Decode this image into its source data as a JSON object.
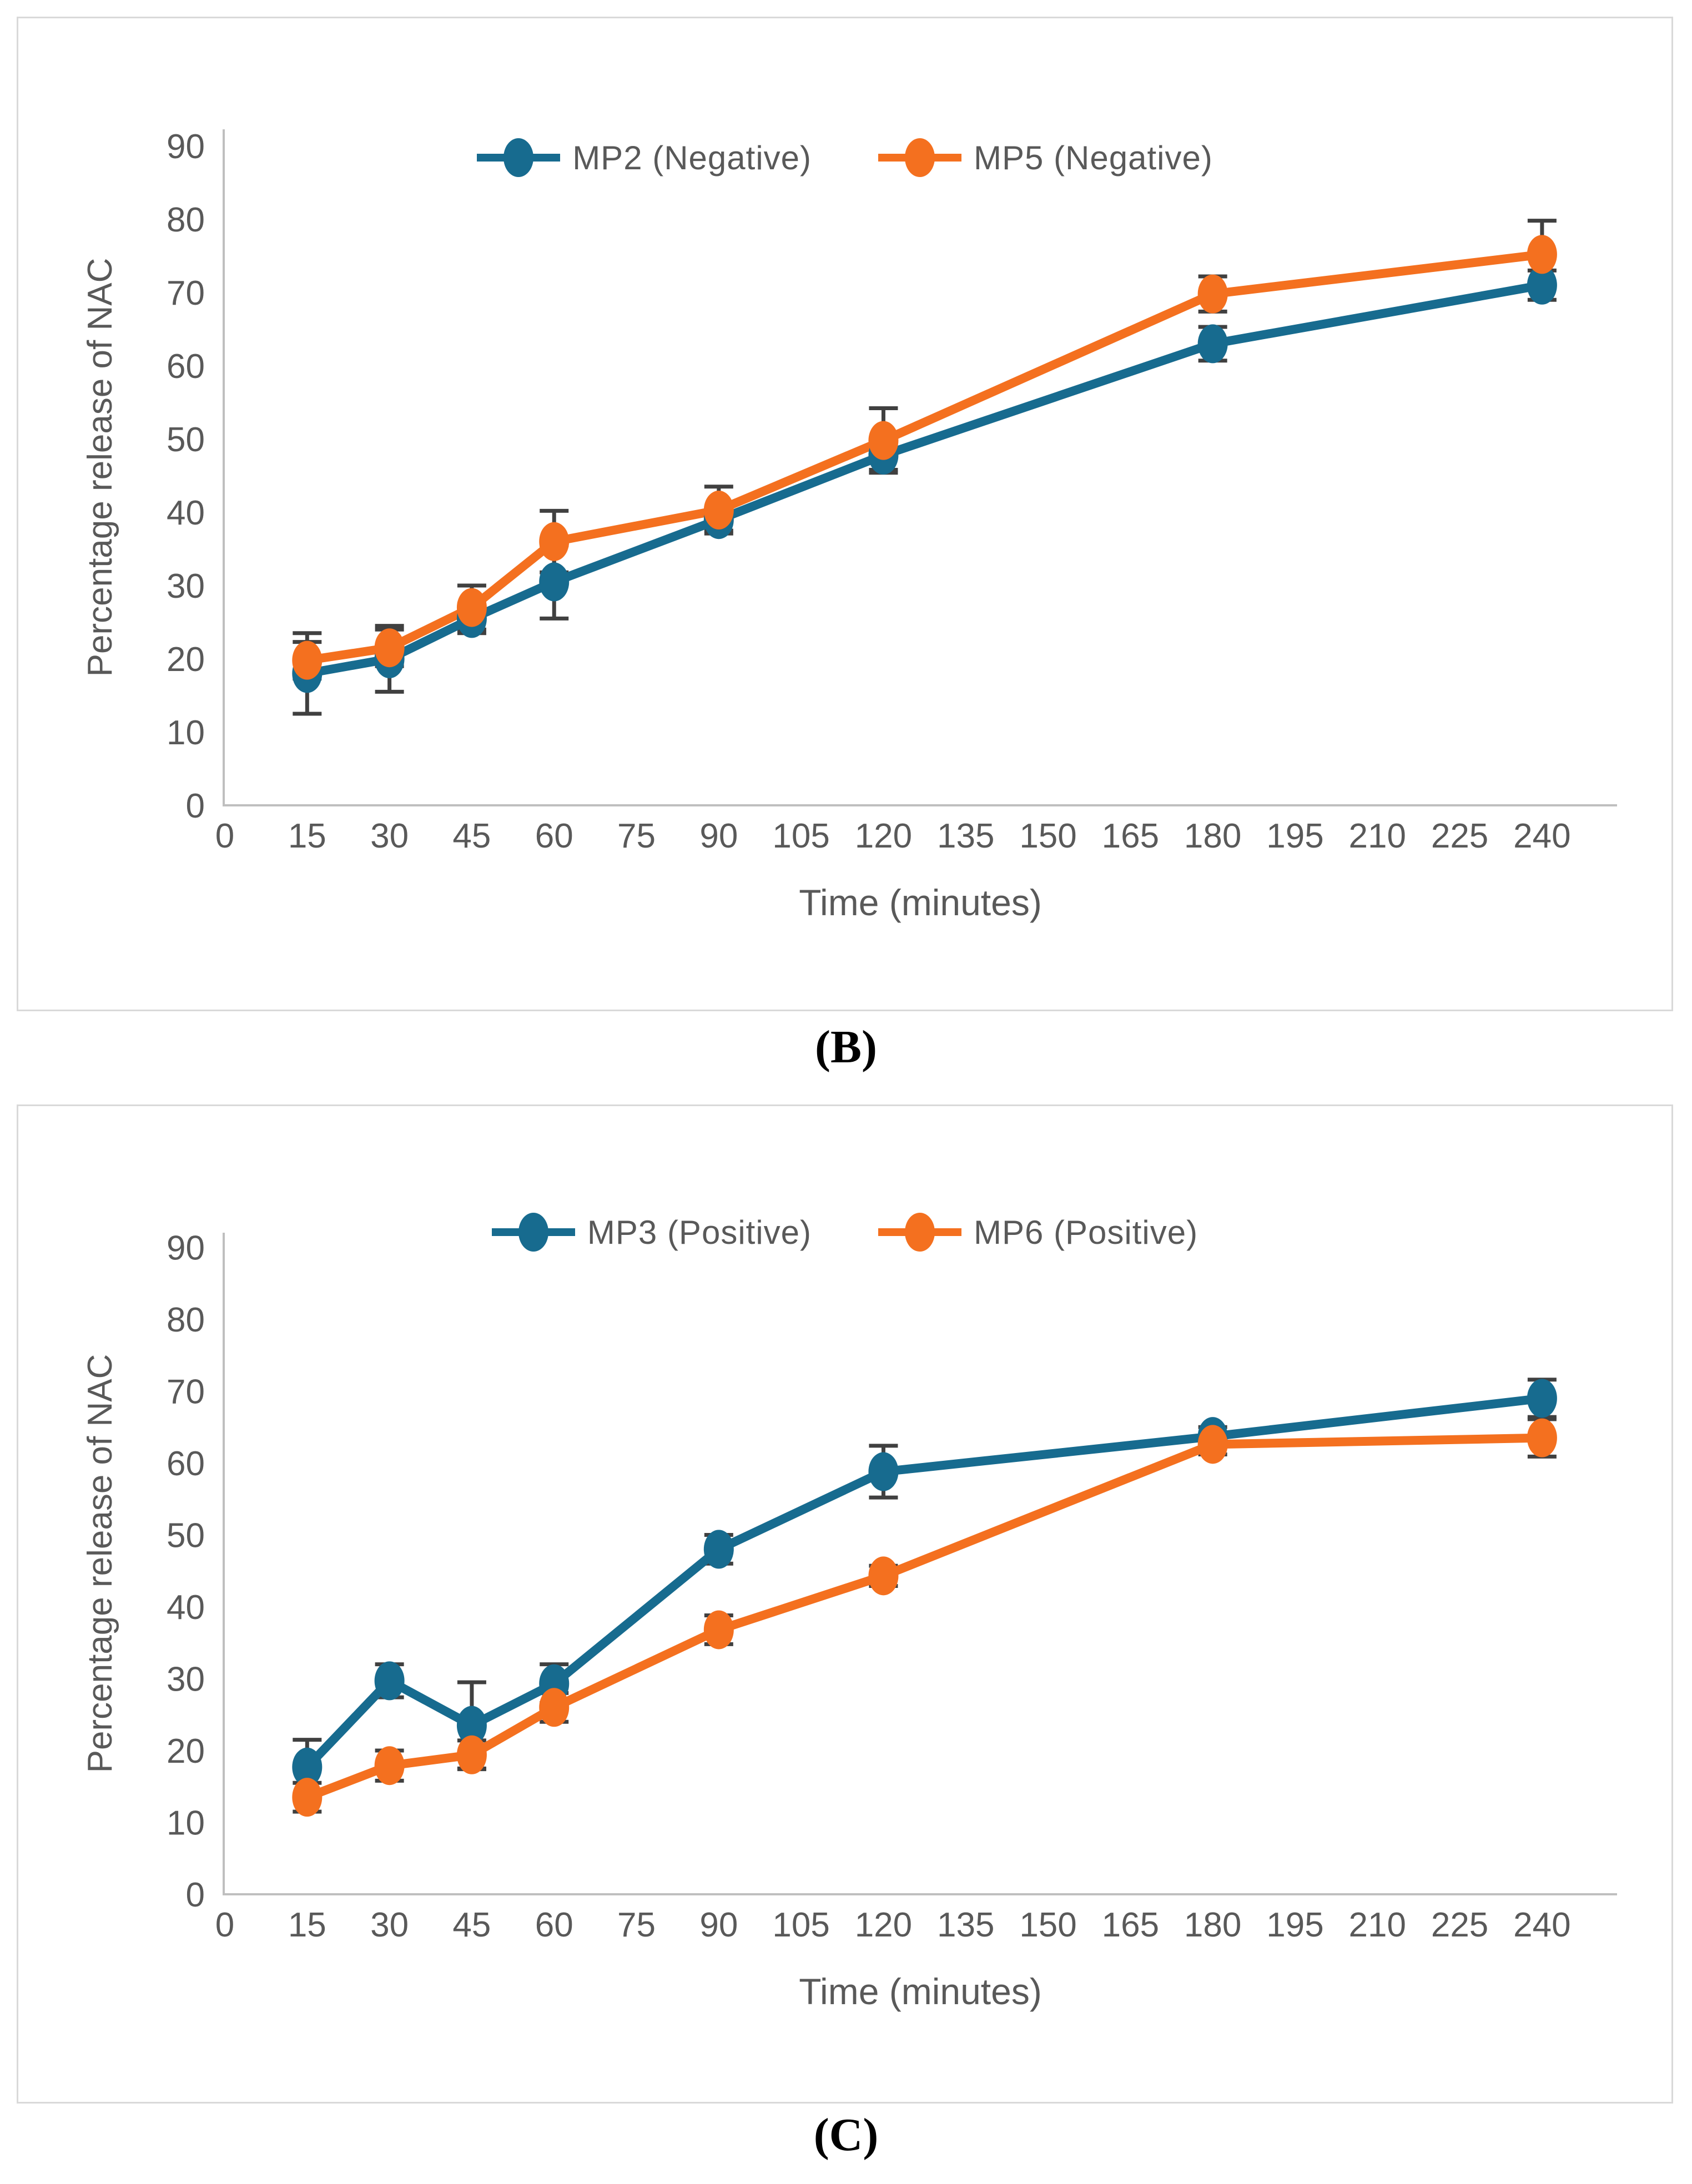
{
  "figure": {
    "captions": [
      "(B)",
      "(C)"
    ]
  },
  "chart_data": [
    {
      "type": "line",
      "caption": "(B)",
      "title": "",
      "xlabel": "Time (minutes)",
      "ylabel": "Percentage release of NAC",
      "x": [
        15,
        30,
        45,
        60,
        90,
        120,
        180,
        240
      ],
      "x_ticks": [
        0,
        15,
        30,
        45,
        60,
        75,
        90,
        105,
        120,
        135,
        150,
        165,
        180,
        195,
        210,
        225,
        240
      ],
      "y_ticks": [
        0,
        10,
        20,
        30,
        40,
        50,
        60,
        70,
        80,
        90
      ],
      "xlim": [
        0,
        253
      ],
      "ylim": [
        0,
        90
      ],
      "grid": false,
      "legend_position": "top-center",
      "error_bars": true,
      "colors": {
        "axis": "#BFBFBF",
        "error_bar": "#404040",
        "tick_text": "#595959"
      },
      "series": [
        {
          "name": "MP2 (Negative)",
          "color": "#176B8F",
          "marker": "circle",
          "values": [
            18.0,
            20.0,
            25.5,
            30.5,
            39.0,
            47.8,
            63.0,
            71.0
          ],
          "errors": [
            5.5,
            4.5,
            2.0,
            5.0,
            1.5,
            2.0,
            2.3,
            2.0
          ]
        },
        {
          "name": "MP5 (Negative)",
          "color": "#F4701F",
          "marker": "circle",
          "values": [
            19.8,
            21.5,
            27.0,
            36.0,
            40.3,
            49.8,
            69.8,
            75.2
          ],
          "errors": [
            2.5,
            2.5,
            3.0,
            4.2,
            3.2,
            4.4,
            2.4,
            4.6
          ]
        }
      ]
    },
    {
      "type": "line",
      "caption": "(C)",
      "title": "",
      "xlabel": "Time (minutes)",
      "ylabel": "Percentage release of NAC",
      "x": [
        15,
        30,
        45,
        60,
        90,
        120,
        180,
        240
      ],
      "x_ticks": [
        0,
        15,
        30,
        45,
        60,
        75,
        90,
        105,
        120,
        135,
        150,
        165,
        180,
        195,
        210,
        225,
        240
      ],
      "y_ticks": [
        0,
        10,
        20,
        30,
        40,
        50,
        60,
        70,
        80,
        90
      ],
      "xlim": [
        0,
        253
      ],
      "ylim": [
        0,
        90
      ],
      "grid": false,
      "legend_position": "top-center",
      "error_bars": true,
      "colors": {
        "axis": "#BFBFBF",
        "error_bar": "#404040",
        "tick_text": "#595959"
      },
      "series": [
        {
          "name": "MP3 (Positive)",
          "color": "#176B8F",
          "marker": "circle",
          "values": [
            17.7,
            29.7,
            23.5,
            29.3,
            48.0,
            58.8,
            63.7,
            69.0
          ],
          "errors": [
            3.8,
            2.3,
            6.0,
            2.7,
            2.0,
            3.6,
            1.3,
            2.6
          ]
        },
        {
          "name": "MP6 (Positive)",
          "color": "#F4701F",
          "marker": "circle",
          "values": [
            13.5,
            17.9,
            19.4,
            26.0,
            36.8,
            44.3,
            62.6,
            63.5
          ],
          "errors": [
            2.0,
            2.1,
            2.0,
            2.0,
            2.0,
            1.4,
            1.4,
            2.6
          ]
        }
      ]
    }
  ]
}
